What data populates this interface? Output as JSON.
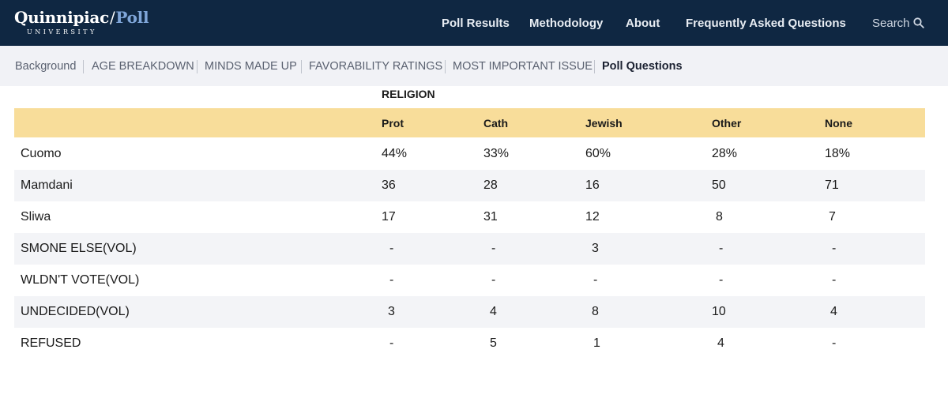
{
  "header": {
    "brand": "Quinnipiac",
    "brand_slash": "/",
    "brand_poll": "Poll",
    "brand_sub": "UNIVERSITY",
    "nav": [
      "Poll Results",
      "Methodology",
      "About",
      "Frequently Asked Questions"
    ],
    "search_label": "Search"
  },
  "subnav": {
    "items": [
      "Background",
      "AGE BREAKDOWN",
      "MINDS MADE UP",
      "FAVORABILITY RATINGS",
      "MOST IMPORTANT ISSUE",
      "Poll Questions"
    ],
    "active": "Poll Questions"
  },
  "table": {
    "group_label": "RELIGION",
    "columns": [
      "Prot",
      "Cath",
      "Jewish",
      "Other",
      "None"
    ],
    "rows": [
      {
        "label": "Cuomo",
        "values": [
          "44%",
          "33%",
          "60%",
          "28%",
          "18%"
        ]
      },
      {
        "label": "Mamdani",
        "values": [
          "36",
          "28",
          "16",
          "50",
          "71"
        ]
      },
      {
        "label": "Sliwa",
        "values": [
          "17",
          "31",
          "12",
          "8",
          "7"
        ]
      },
      {
        "label": "SMONE ELSE(VOL)",
        "values": [
          "-",
          "-",
          "3",
          "-",
          "-"
        ]
      },
      {
        "label": "WLDN'T VOTE(VOL)",
        "values": [
          "-",
          "-",
          "-",
          "-",
          "-"
        ]
      },
      {
        "label": "UNDECIDED(VOL)",
        "values": [
          "3",
          "4",
          "8",
          "10",
          "4"
        ]
      },
      {
        "label": "REFUSED",
        "values": [
          "-",
          "5",
          "1",
          "4",
          "-"
        ]
      }
    ]
  },
  "colors": {
    "header_bg": "#0f2742",
    "accent_poll": "#7fa6d9",
    "table_header_bg": "#f8dd9a",
    "row_alt_bg": "#f3f4f7",
    "subnav_bg": "#f1f2f6"
  }
}
